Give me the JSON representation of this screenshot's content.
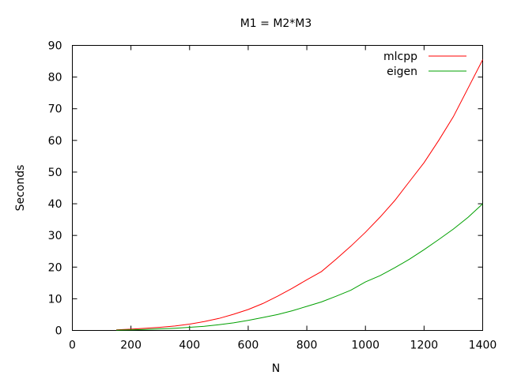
{
  "chart_data": {
    "type": "line",
    "title": "M1 = M2*M3",
    "xlabel": "N",
    "ylabel": "Seconds",
    "xlim": [
      0,
      1400
    ],
    "ylim": [
      0,
      90
    ],
    "xticks": [
      0,
      200,
      400,
      600,
      800,
      1000,
      1200,
      1400
    ],
    "yticks": [
      0,
      10,
      20,
      30,
      40,
      50,
      60,
      70,
      80,
      90
    ],
    "grid": false,
    "legend_position": "top-right",
    "series": [
      {
        "name": "mlcpp",
        "color": "#ff0000",
        "x": [
          150,
          200,
          250,
          300,
          350,
          400,
          450,
          500,
          550,
          600,
          650,
          700,
          750,
          800,
          850,
          900,
          950,
          1000,
          1050,
          1100,
          1150,
          1200,
          1250,
          1300,
          1350,
          1400
        ],
        "y": [
          0.2,
          0.4,
          0.7,
          1.0,
          1.4,
          2.0,
          2.8,
          3.8,
          5.1,
          6.6,
          8.5,
          10.8,
          13.3,
          16.0,
          18.6,
          22.5,
          26.6,
          31.0,
          35.8,
          41.0,
          47.0,
          53.0,
          60.0,
          67.5,
          76.5,
          85.5
        ]
      },
      {
        "name": "eigen",
        "color": "#00a000",
        "x": [
          150,
          200,
          250,
          300,
          350,
          400,
          450,
          500,
          550,
          600,
          650,
          700,
          750,
          800,
          850,
          900,
          950,
          1000,
          1050,
          1100,
          1150,
          1200,
          1250,
          1300,
          1350,
          1400
        ],
        "y": [
          0.1,
          0.2,
          0.3,
          0.5,
          0.7,
          1.0,
          1.3,
          1.8,
          2.4,
          3.2,
          4.1,
          5.0,
          6.2,
          7.6,
          9.0,
          10.8,
          12.7,
          15.3,
          17.3,
          19.8,
          22.5,
          25.5,
          28.7,
          32.0,
          35.7,
          40.0
        ]
      }
    ]
  }
}
